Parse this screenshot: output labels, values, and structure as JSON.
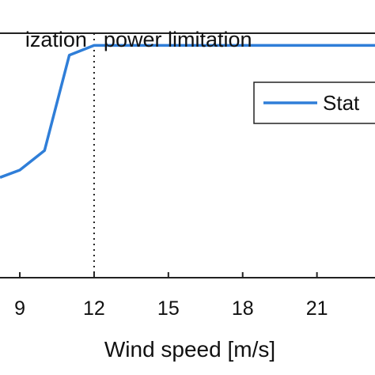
{
  "chart_data": {
    "type": "line",
    "xlabel": "Wind speed [m/s]",
    "ylabel": "",
    "xlim": [
      8.2,
      23.6
    ],
    "ylim": [
      0,
      1.0
    ],
    "x_ticks": [
      9,
      12,
      15,
      18,
      21
    ],
    "x_tick_labels": [
      "9",
      "12",
      "15",
      "18",
      "21"
    ],
    "grid": false,
    "regions": [
      {
        "label": "ization",
        "x_start": 8.2,
        "x_end": 12
      },
      {
        "label": "power limitation",
        "x_start": 12,
        "x_end": 23.6
      }
    ],
    "region_divider_x": 12,
    "series": [
      {
        "name": "Stat",
        "color": "#2f7ed8",
        "x": [
          8.2,
          9,
          10,
          11,
          12,
          13,
          14,
          15,
          16,
          17,
          18,
          19,
          20,
          21,
          22,
          23,
          23.6
        ],
        "y": [
          0.41,
          0.44,
          0.52,
          0.91,
          0.95,
          0.95,
          0.95,
          0.95,
          0.95,
          0.95,
          0.95,
          0.95,
          0.95,
          0.95,
          0.95,
          0.95,
          0.95
        ]
      }
    ],
    "legend": {
      "position": "top-right",
      "entries": [
        "Stat"
      ]
    }
  }
}
